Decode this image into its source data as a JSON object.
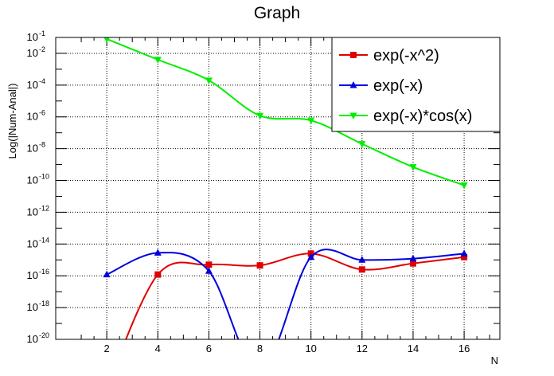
{
  "chart_data": {
    "type": "line",
    "title": "Graph",
    "xlabel": "N",
    "ylabel": "Log(|Num-Anal|)",
    "xlim": [
      0,
      17.4
    ],
    "ylim": [
      1e-20,
      0.1
    ],
    "yscale": "log",
    "grid": true,
    "legend_position": "top-right",
    "x_ticks": [
      "2",
      "4",
      "6",
      "8",
      "10",
      "12",
      "14",
      "16"
    ],
    "y_ticks": [
      {
        "base": "10",
        "exp": "-1",
        "value": 0.1
      },
      {
        "base": "10",
        "exp": "-2",
        "value": 0.01
      },
      {
        "base": "10",
        "exp": "-4",
        "value": 0.0001
      },
      {
        "base": "10",
        "exp": "-6",
        "value": 1e-06
      },
      {
        "base": "10",
        "exp": "-8",
        "value": 1e-08
      },
      {
        "base": "10",
        "exp": "-10",
        "value": 1e-10
      },
      {
        "base": "10",
        "exp": "-12",
        "value": 1e-12
      },
      {
        "base": "10",
        "exp": "-14",
        "value": 1e-14
      },
      {
        "base": "10",
        "exp": "-16",
        "value": 1e-16
      },
      {
        "base": "10",
        "exp": "-18",
        "value": 1e-18
      },
      {
        "base": "10",
        "exp": "-20",
        "value": 1e-20
      }
    ],
    "series": [
      {
        "name": "exp(-x^2)",
        "color": "#e00000",
        "marker": "square",
        "points": [
          [
            2,
            1e-23
          ],
          [
            4,
            1.2e-16
          ],
          [
            6,
            5e-16
          ],
          [
            8,
            4.5e-16
          ],
          [
            10,
            2.5e-15
          ],
          [
            12,
            2.5e-16
          ],
          [
            14,
            6e-16
          ],
          [
            16,
            1.5e-15
          ]
        ]
      },
      {
        "name": "exp(-x)",
        "color": "#0000e0",
        "marker": "triangle-up",
        "points": [
          [
            2,
            1.2e-16
          ],
          [
            4,
            2.8e-15
          ],
          [
            6,
            2e-16
          ],
          [
            8,
            1e-22
          ],
          [
            10,
            1.5e-15
          ],
          [
            12,
            1e-15
          ],
          [
            14,
            1.2e-15
          ],
          [
            16,
            2.5e-15
          ]
        ]
      },
      {
        "name": "exp(-x)*cos(x)",
        "color": "#00ee00",
        "marker": "triangle-down",
        "points": [
          [
            2,
            0.08
          ],
          [
            4,
            0.004
          ],
          [
            6,
            0.0002
          ],
          [
            8,
            1.2e-06
          ],
          [
            10,
            6e-07
          ],
          [
            12,
            2e-08
          ],
          [
            14,
            7e-10
          ],
          [
            16,
            5e-11
          ]
        ]
      }
    ]
  }
}
